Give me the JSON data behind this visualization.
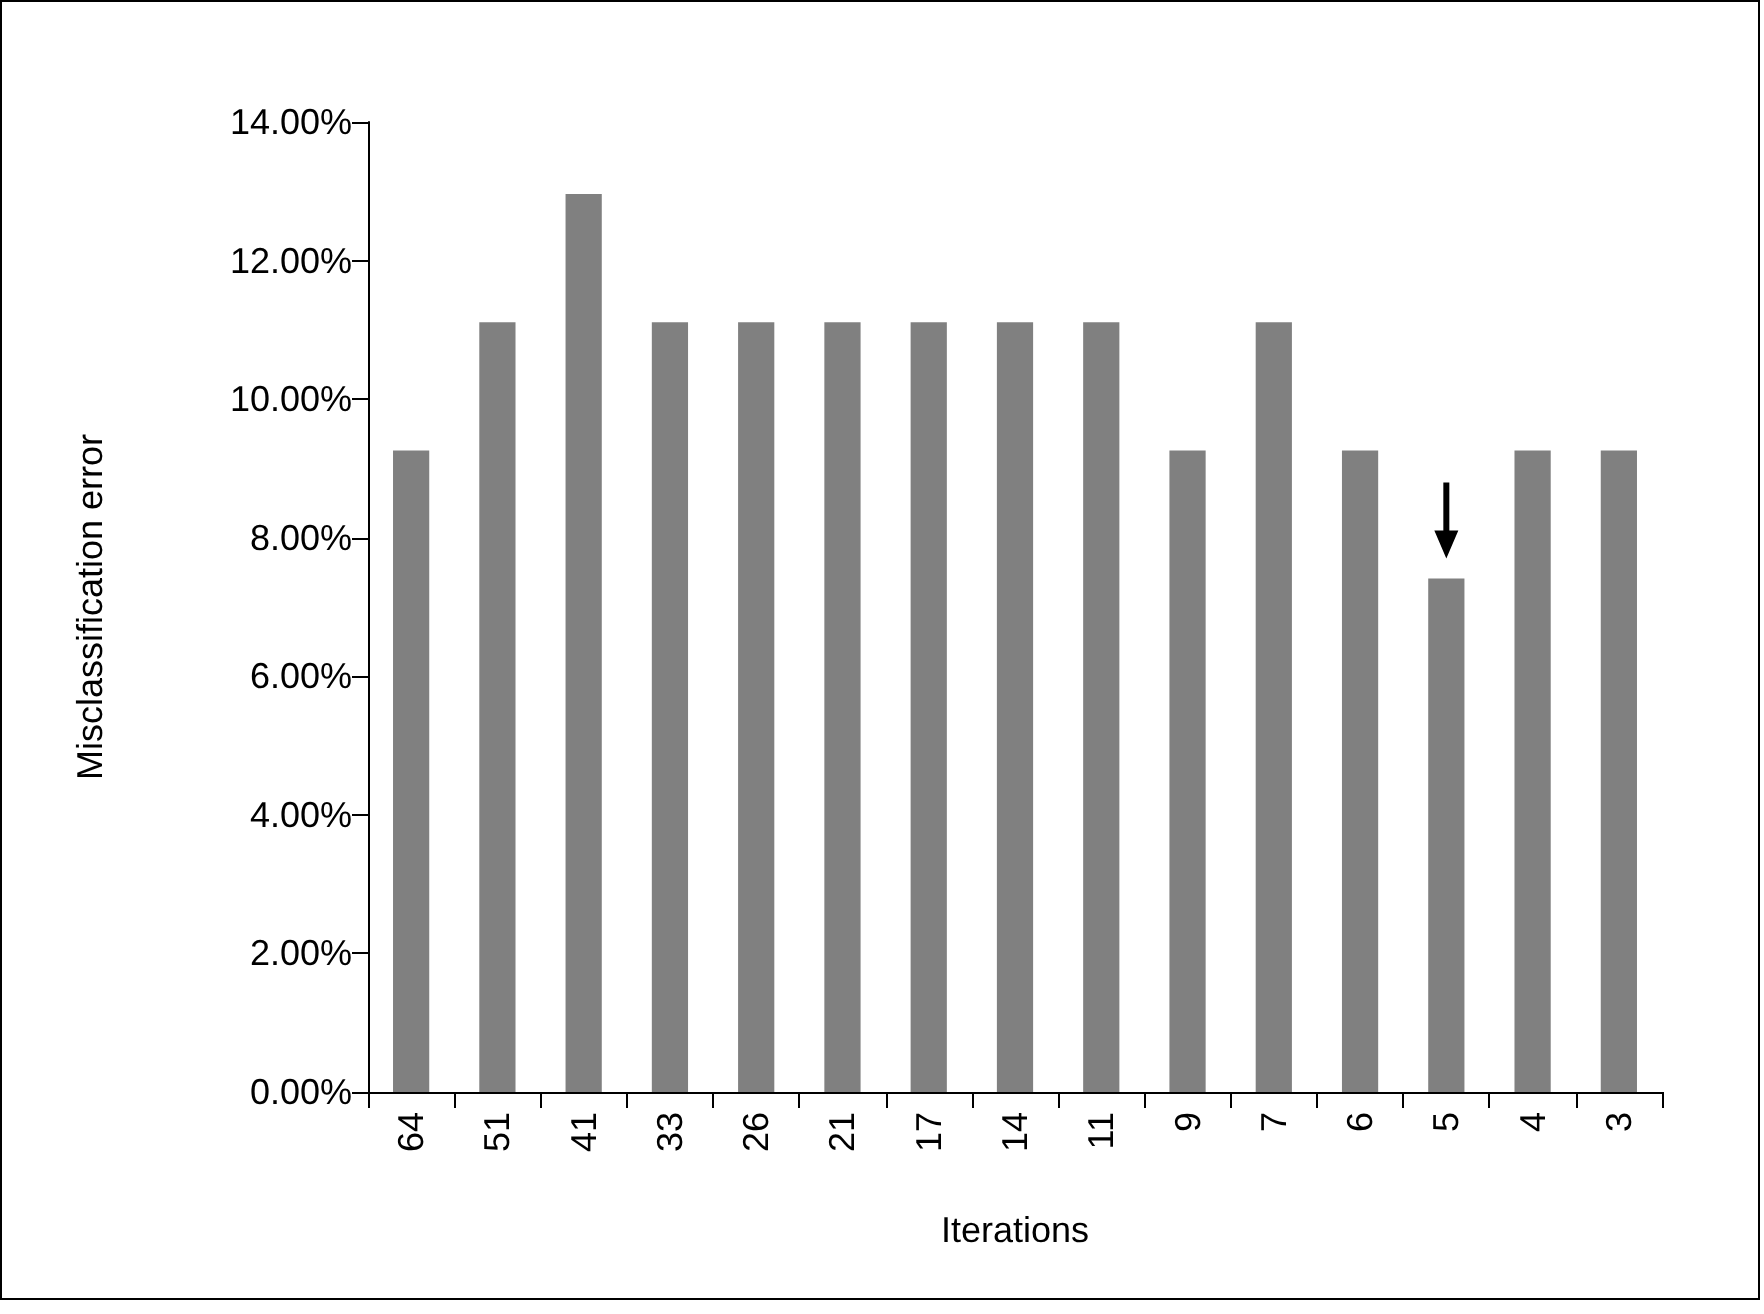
{
  "chart_data": {
    "type": "bar",
    "xlabel": "Iterations",
    "ylabel": "Misclassification error",
    "categories": [
      "64",
      "51",
      "41",
      "33",
      "26",
      "21",
      "17",
      "14",
      "11",
      "9",
      "7",
      "6",
      "5",
      "4",
      "3"
    ],
    "values": [
      9.26,
      11.11,
      12.96,
      11.11,
      11.11,
      11.11,
      11.11,
      11.11,
      11.11,
      9.26,
      11.11,
      9.26,
      7.41,
      9.26,
      9.26
    ],
    "color": "#808080",
    "ylim": [
      0,
      14
    ],
    "yticks": [
      {
        "value": 0,
        "label": "0.00%"
      },
      {
        "value": 2,
        "label": "2.00%"
      },
      {
        "value": 4,
        "label": "4.00%"
      },
      {
        "value": 6,
        "label": "6.00%"
      },
      {
        "value": 8,
        "label": "8.00%"
      },
      {
        "value": 10,
        "label": "10.00%"
      },
      {
        "value": 12,
        "label": "12.00%"
      },
      {
        "value": 14,
        "label": "14.00%"
      }
    ],
    "grid": false
  }
}
